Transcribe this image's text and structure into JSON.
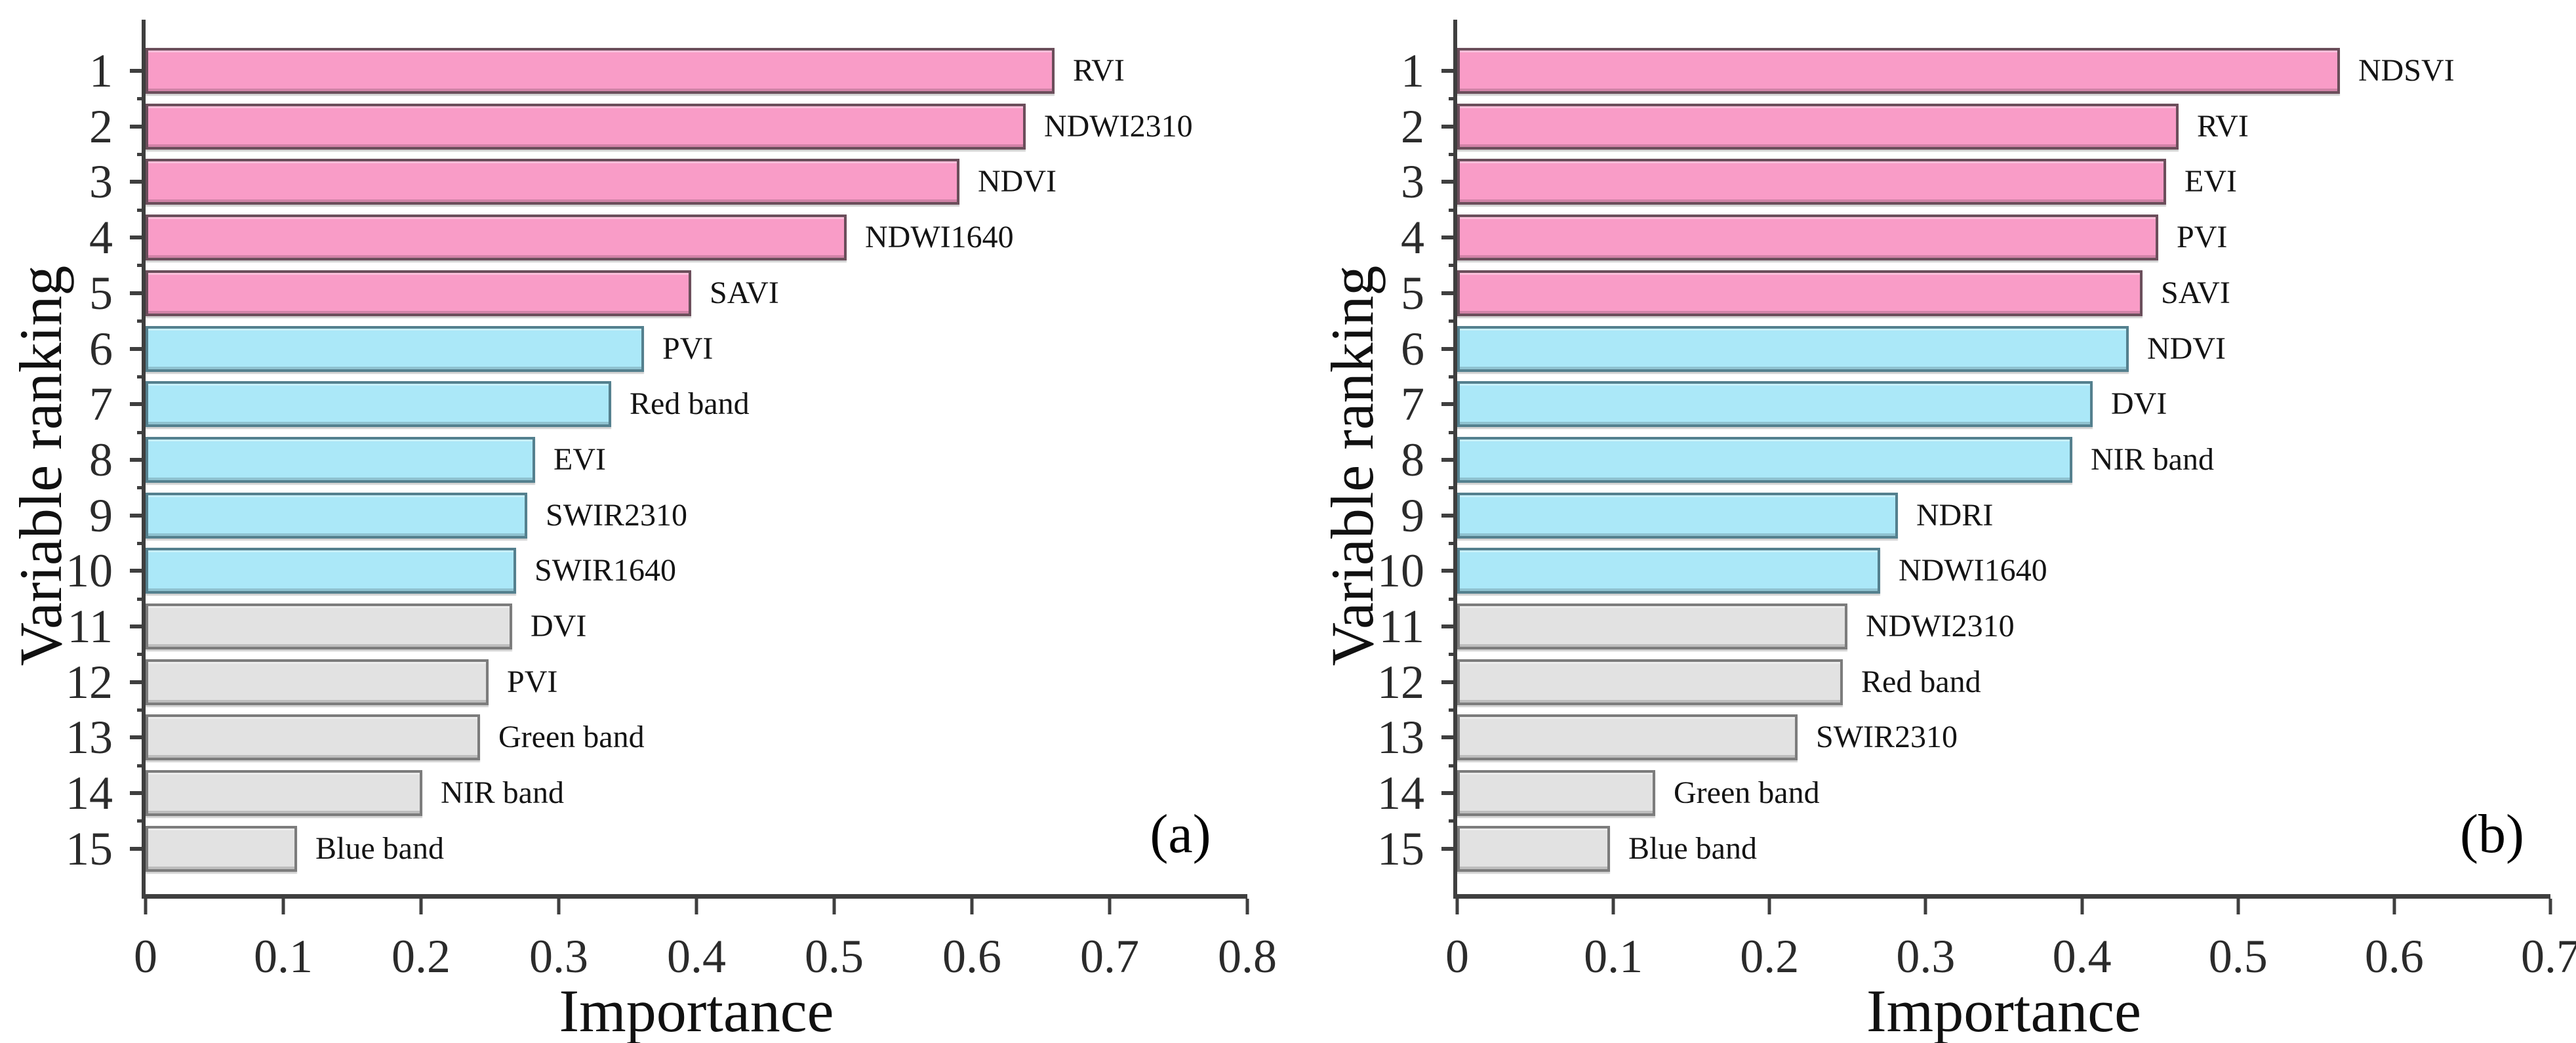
{
  "figure": {
    "background": "#ffffff",
    "axis_color": "#3f3f3f",
    "text_color": "#1a1a1a"
  },
  "colors": {
    "pink": "#F99CC7",
    "blue": "#ABE8F8",
    "gray": "#E2E2E2",
    "pink_border": "#6B4E5B",
    "blue_border": "#54808E",
    "gray_border": "#7C7C7C"
  },
  "chart_data": [
    {
      "type": "bar",
      "orientation": "horizontal",
      "panel": "(a)",
      "xlabel": "Importance",
      "ylabel": "Variable ranking",
      "xlim": [
        0,
        0.8
      ],
      "xticks": [
        "0",
        "0.1",
        "0.2",
        "0.3",
        "0.4",
        "0.5",
        "0.6",
        "0.7",
        "0.8"
      ],
      "grid": false,
      "categories": [
        1,
        2,
        3,
        4,
        5,
        6,
        7,
        8,
        9,
        10,
        11,
        12,
        13,
        14,
        15
      ],
      "labels": [
        "RVI",
        "NDWI2310",
        "NDVI",
        "NDWI1640",
        "SAVI",
        "PVI",
        "Red band",
        "EVI",
        "SWIR2310",
        "SWIR1640",
        "DVI",
        "PVI",
        "Green band",
        "NIR band",
        "Blue band"
      ],
      "values": [
        0.66,
        0.639,
        0.591,
        0.509,
        0.396,
        0.362,
        0.338,
        0.283,
        0.277,
        0.269,
        0.266,
        0.249,
        0.243,
        0.201,
        0.11
      ],
      "groups": [
        "pink",
        "pink",
        "pink",
        "pink",
        "pink",
        "blue",
        "blue",
        "blue",
        "blue",
        "blue",
        "gray",
        "gray",
        "gray",
        "gray",
        "gray"
      ]
    },
    {
      "type": "bar",
      "orientation": "horizontal",
      "panel": "(b)",
      "xlabel": "Importance",
      "ylabel": "Variable ranking",
      "xlim": [
        0,
        0.7
      ],
      "xticks": [
        "0",
        "0.1",
        "0.2",
        "0.3",
        "0.4",
        "0.5",
        "0.6",
        "0.7"
      ],
      "grid": false,
      "categories": [
        1,
        2,
        3,
        4,
        5,
        6,
        7,
        8,
        9,
        10,
        11,
        12,
        13,
        14,
        15
      ],
      "labels": [
        "NDSVI",
        "RVI",
        "EVI",
        "PVI",
        "SAVI",
        "NDVI",
        "DVI",
        "NIR band",
        "NDRI",
        "NDWI1640",
        "NDWI2310",
        "Red band",
        "SWIR2310",
        "Green band",
        "Blue band"
      ],
      "values": [
        0.565,
        0.462,
        0.454,
        0.449,
        0.439,
        0.43,
        0.407,
        0.394,
        0.282,
        0.271,
        0.25,
        0.247,
        0.218,
        0.127,
        0.098
      ],
      "groups": [
        "pink",
        "pink",
        "pink",
        "pink",
        "pink",
        "blue",
        "blue",
        "blue",
        "blue",
        "blue",
        "gray",
        "gray",
        "gray",
        "gray",
        "gray"
      ]
    }
  ]
}
